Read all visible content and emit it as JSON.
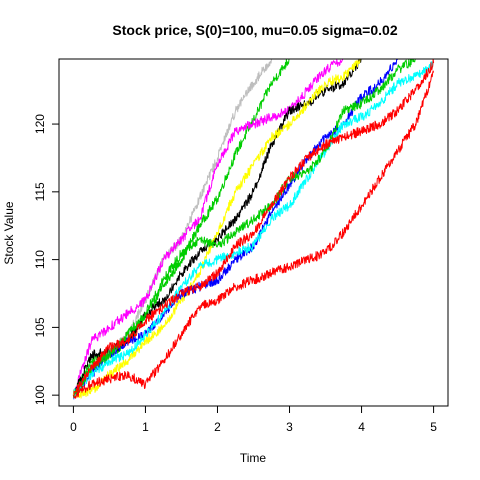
{
  "chart_data": {
    "type": "line",
    "title": "Stock price, S(0)=100, mu=0.05 sigma=0.02",
    "xlabel": "Time",
    "ylabel": "Stock Value",
    "xlim": [
      -0.2,
      5.2
    ],
    "ylim": [
      99.2,
      124.8
    ],
    "x_ticks": [
      0,
      1,
      2,
      3,
      4,
      5
    ],
    "y_ticks": [
      100,
      105,
      110,
      115,
      120
    ],
    "grid": false,
    "legend": "none",
    "x": [
      0,
      0.25,
      0.5,
      0.75,
      1.0,
      1.25,
      1.5,
      1.75,
      2.0,
      2.25,
      2.5,
      2.75,
      3.0,
      3.25,
      3.5,
      3.75,
      4.0,
      4.25,
      4.5,
      4.75,
      5.0
    ],
    "series": [
      {
        "color": "#00cd00",
        "values": [
          100.0,
          102.5,
          103.0,
          104.0,
          105.8,
          108.0,
          110.0,
          112.5,
          114.5,
          117.8,
          120.3,
          123.0,
          124.8,
          null,
          null,
          null,
          null,
          null,
          null,
          null,
          null
        ]
      },
      {
        "color": "#bebebe",
        "values": [
          100.0,
          102.0,
          103.0,
          104.5,
          107.0,
          110.0,
          111.5,
          114.5,
          117.5,
          121.0,
          123.0,
          124.8,
          null,
          null,
          null,
          null,
          null,
          null,
          null,
          null,
          null
        ]
      },
      {
        "color": "#ff00ff",
        "values": [
          100.0,
          104.0,
          105.0,
          106.0,
          107.0,
          110.0,
          111.5,
          113.0,
          117.0,
          119.5,
          120.0,
          120.5,
          121.0,
          122.5,
          124.0,
          124.8,
          null,
          null,
          null,
          null,
          null
        ]
      },
      {
        "color": "#000000",
        "values": [
          100.0,
          103.0,
          103.2,
          104.0,
          106.0,
          107.0,
          109.0,
          110.5,
          111.5,
          113.0,
          115.0,
          118.5,
          121.0,
          121.5,
          122.5,
          123.0,
          124.8,
          null,
          null,
          null,
          null
        ]
      },
      {
        "color": "#ffff00",
        "values": [
          100.0,
          100.3,
          101.5,
          102.5,
          104.0,
          105.0,
          107.0,
          109.0,
          112.0,
          115.0,
          117.0,
          119.0,
          120.0,
          121.5,
          123.0,
          123.5,
          124.8,
          null,
          null,
          null,
          null
        ]
      },
      {
        "color": "#0000ff",
        "values": [
          100.0,
          101.5,
          103.0,
          104.0,
          104.5,
          106.0,
          107.5,
          108.0,
          108.5,
          110.0,
          111.0,
          113.5,
          115.5,
          117.5,
          119.0,
          120.0,
          122.0,
          123.0,
          124.8,
          null,
          null
        ]
      },
      {
        "color": "#00ffff",
        "values": [
          100.0,
          101.5,
          102.5,
          103.0,
          104.5,
          106.0,
          108.0,
          109.5,
          110.0,
          110.5,
          111.0,
          113.0,
          114.0,
          116.0,
          118.0,
          120.0,
          120.5,
          121.5,
          123.0,
          123.5,
          124.5
        ]
      },
      {
        "color": "#ff0000",
        "values": [
          100.0,
          100.8,
          101.2,
          101.5,
          100.8,
          102.5,
          104.5,
          106.5,
          107.0,
          108.0,
          108.5,
          109.0,
          109.5,
          110.0,
          110.5,
          112.0,
          114.0,
          116.0,
          118.0,
          120.0,
          123.8
        ]
      },
      {
        "color": "#00cd00",
        "values": [
          100.0,
          102.0,
          103.0,
          104.5,
          106.0,
          108.5,
          110.5,
          111.5,
          111.0,
          112.0,
          113.0,
          114.0,
          116.0,
          116.5,
          118.0,
          121.0,
          121.5,
          122.5,
          124.0,
          124.8,
          null
        ]
      },
      {
        "color": "#ff0000",
        "values": [
          100.0,
          102.0,
          103.5,
          104.0,
          105.5,
          106.5,
          107.5,
          108.0,
          109.0,
          111.0,
          112.0,
          114.0,
          116.0,
          117.5,
          118.5,
          119.0,
          119.5,
          120.0,
          121.0,
          122.5,
          124.5
        ]
      }
    ]
  }
}
